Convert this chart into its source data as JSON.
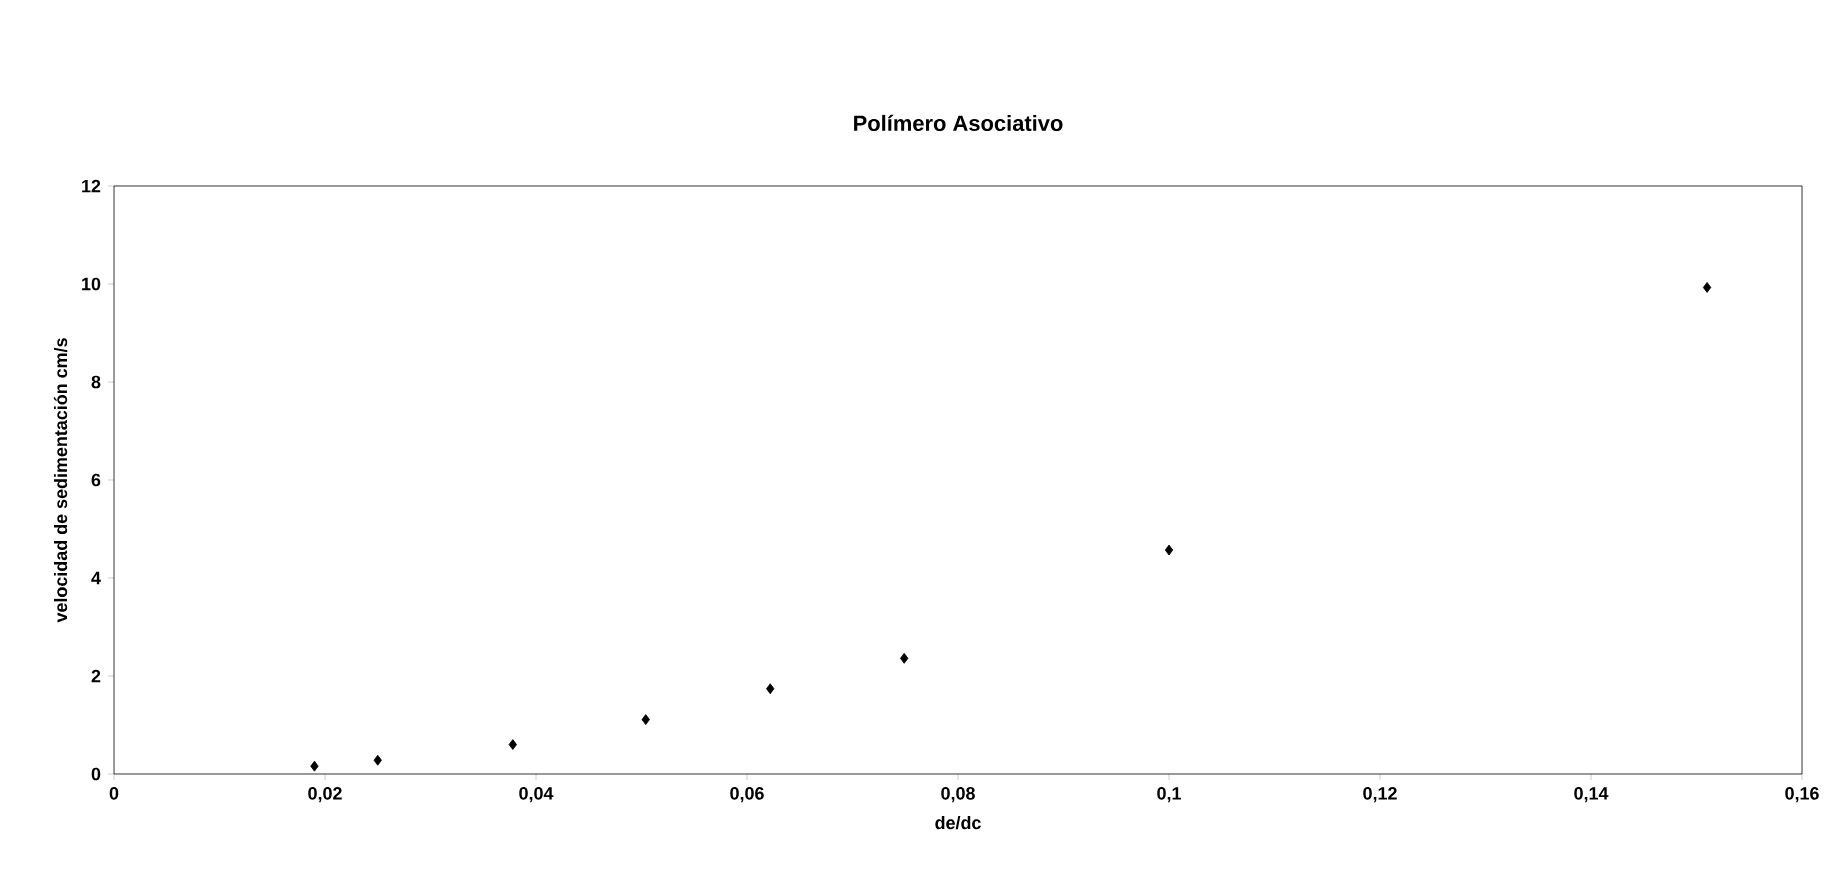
{
  "chart_data": {
    "type": "scatter",
    "title": "Polímero Asociativo",
    "xlabel": "de/dc",
    "ylabel": "velocidad de sedimentación cm/s",
    "x": [
      0.019,
      0.025,
      0.0378,
      0.0504,
      0.0622,
      0.0749,
      0.1,
      0.151
    ],
    "values": [
      0.16,
      0.28,
      0.6,
      1.11,
      1.74,
      2.36,
      4.57,
      9.93
    ],
    "color": "#000000",
    "marker": "diamond",
    "grid": false,
    "xlim": [
      0,
      0.16
    ],
    "ylim": [
      0,
      12
    ],
    "xticks": [
      0,
      {
        "value": 0.02,
        "label": "0,02"
      },
      {
        "value": 0.04,
        "label": "0,04"
      },
      {
        "value": 0.06,
        "label": "0,06"
      },
      {
        "value": 0.08,
        "label": "0,08"
      },
      {
        "value": 0.1,
        "label": "0,1"
      },
      {
        "value": 0.12,
        "label": "0,12"
      },
      {
        "value": 0.14,
        "label": "0,14"
      },
      {
        "value": 0.16,
        "label": "0,16"
      }
    ],
    "yticks": [
      0,
      2,
      4,
      6,
      8,
      10,
      12
    ]
  }
}
